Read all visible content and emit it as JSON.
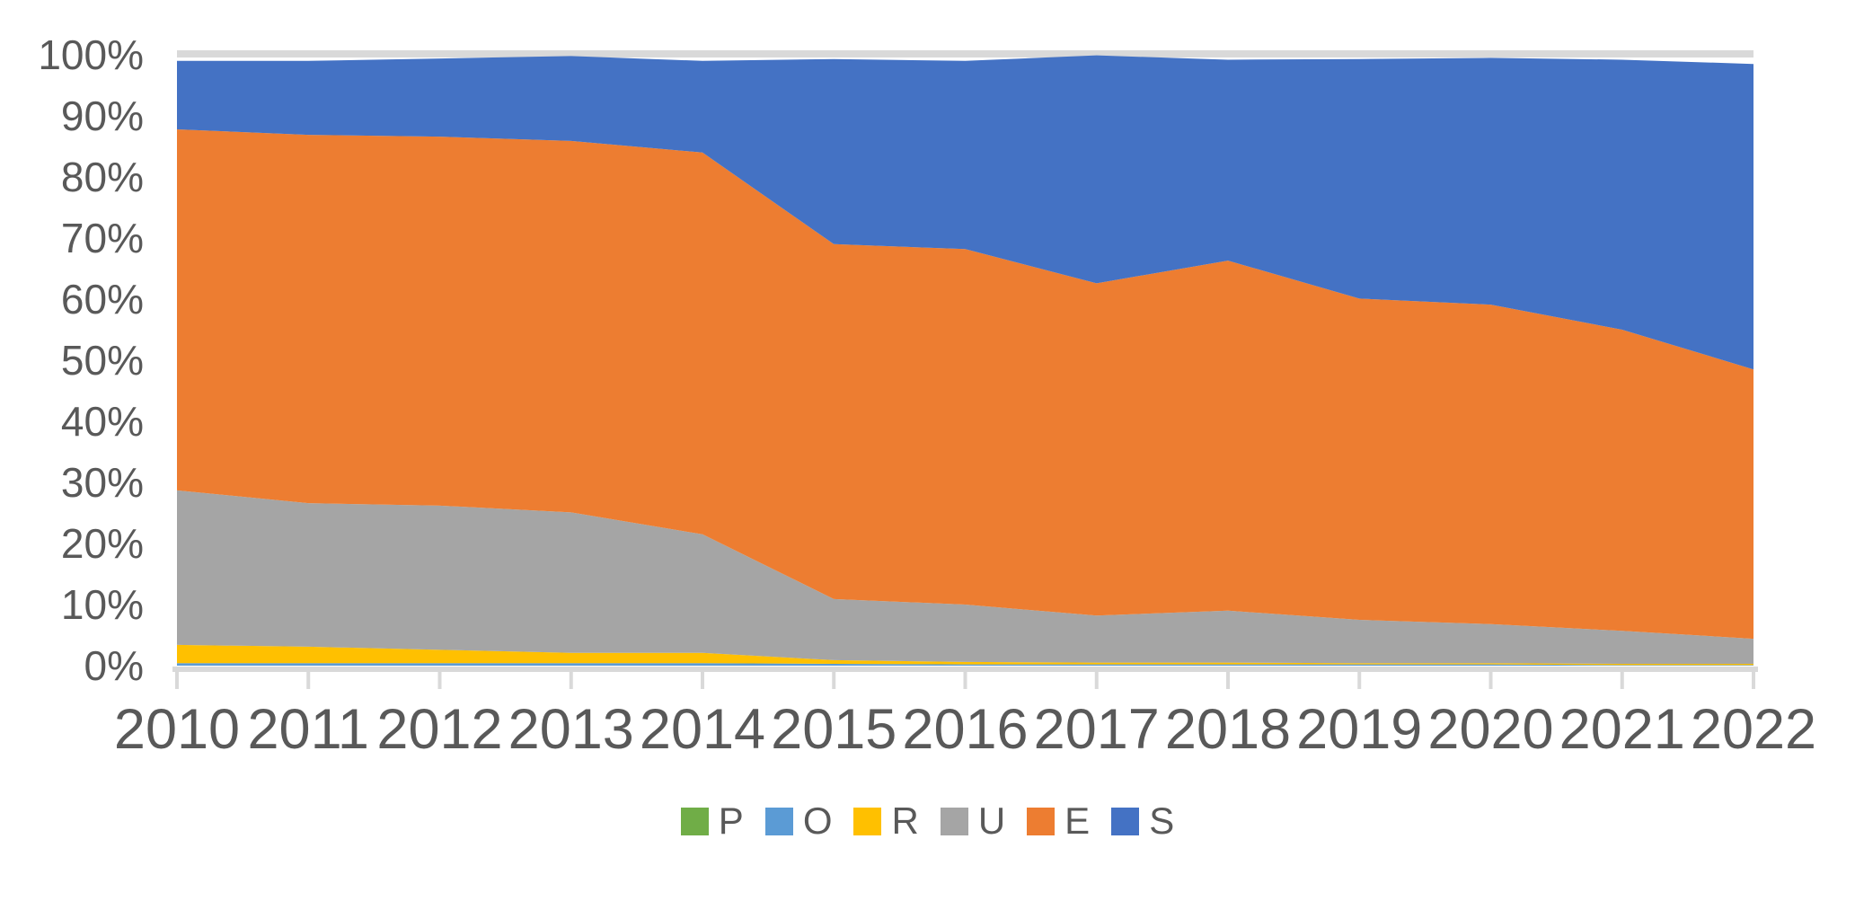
{
  "chart_data": {
    "type": "area",
    "stacking": "percent",
    "title": "",
    "categories": [
      "2010",
      "2011",
      "2012",
      "2013",
      "2014",
      "2015",
      "2016",
      "2017",
      "2018",
      "2019",
      "2020",
      "2021",
      "2022"
    ],
    "series": [
      {
        "name": "P",
        "color": "#70AD47",
        "values": [
          0,
          0,
          0,
          0,
          0,
          0,
          0,
          0,
          0,
          0,
          0,
          0,
          0
        ]
      },
      {
        "name": "O",
        "color": "#5B9BD5",
        "values": [
          0.4,
          0.4,
          0.4,
          0.4,
          0.4,
          0.3,
          0.2,
          0.2,
          0.2,
          0.2,
          0.2,
          0.1,
          0.1
        ]
      },
      {
        "name": "R",
        "color": "#FFC000",
        "values": [
          3.0,
          2.7,
          2.2,
          1.7,
          1.7,
          0.6,
          0.4,
          0.3,
          0.3,
          0.2,
          0.2,
          0.2,
          0.2
        ]
      },
      {
        "name": "U",
        "color": "#A5A5A5",
        "values": [
          25.3,
          23.5,
          23.6,
          23.0,
          19.4,
          10.0,
          9.4,
          7.7,
          8.5,
          7.1,
          6.4,
          5.4,
          4.1
        ]
      },
      {
        "name": "E",
        "color": "#ED7D31",
        "values": [
          59.1,
          60.3,
          60.4,
          60.8,
          62.5,
          58.1,
          58.2,
          54.4,
          57.3,
          52.6,
          52.3,
          49.3,
          44.1
        ]
      },
      {
        "name": "S",
        "color": "#4472C4",
        "values": [
          11.2,
          12.1,
          12.8,
          13.9,
          15.0,
          30.3,
          30.8,
          37.3,
          32.9,
          39.2,
          40.4,
          44.2,
          50.0
        ]
      }
    ],
    "xlabel": "",
    "ylabel": "",
    "y_axis": {
      "min": 0,
      "max": 100,
      "tick_labels_top_to_bottom": [
        "100%",
        "90%",
        "80%",
        "70%",
        "60%",
        "50%",
        "40%",
        "30%",
        "20%",
        "10%",
        "0%"
      ]
    },
    "gridline_100pct": true,
    "legend_position": "bottom",
    "legend_items": [
      "P",
      "O",
      "R",
      "U",
      "E",
      "S"
    ]
  },
  "style_colors": {
    "axis_line": "#D9D9D9",
    "gridline": "#D9D9D9",
    "tick_mark": "#D9D9D9",
    "label_text": "#595959",
    "background": "#FFFFFF"
  }
}
